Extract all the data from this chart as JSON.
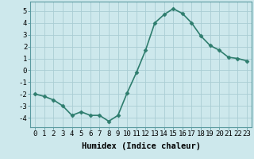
{
  "x": [
    0,
    1,
    2,
    3,
    4,
    5,
    6,
    7,
    8,
    9,
    10,
    11,
    12,
    13,
    14,
    15,
    16,
    17,
    18,
    19,
    20,
    21,
    22,
    23
  ],
  "y": [
    -2.0,
    -2.2,
    -2.5,
    -3.0,
    -3.8,
    -3.5,
    -3.8,
    -3.8,
    -4.3,
    -3.8,
    -1.9,
    -0.2,
    1.7,
    4.0,
    4.7,
    5.2,
    4.8,
    4.0,
    2.9,
    2.1,
    1.7,
    1.1,
    1.0,
    0.8
  ],
  "line_color": "#2e7d6e",
  "marker": "D",
  "marker_size": 2.5,
  "linewidth": 1.2,
  "bg_color": "#cde8ec",
  "grid_color": "#aacdd4",
  "xlabel": "Humidex (Indice chaleur)",
  "ylabel": "",
  "xlim": [
    -0.5,
    23.5
  ],
  "ylim": [
    -4.8,
    5.8
  ],
  "yticks": [
    -4,
    -3,
    -2,
    -1,
    0,
    1,
    2,
    3,
    4,
    5
  ],
  "xtick_labels": [
    "0",
    "1",
    "2",
    "3",
    "4",
    "5",
    "6",
    "7",
    "8",
    "9",
    "10",
    "11",
    "12",
    "13",
    "14",
    "15",
    "16",
    "17",
    "18",
    "19",
    "20",
    "21",
    "22",
    "23"
  ],
  "tick_fontsize": 6.5,
  "xlabel_fontsize": 7.5,
  "spine_color": "#5a9aa0"
}
